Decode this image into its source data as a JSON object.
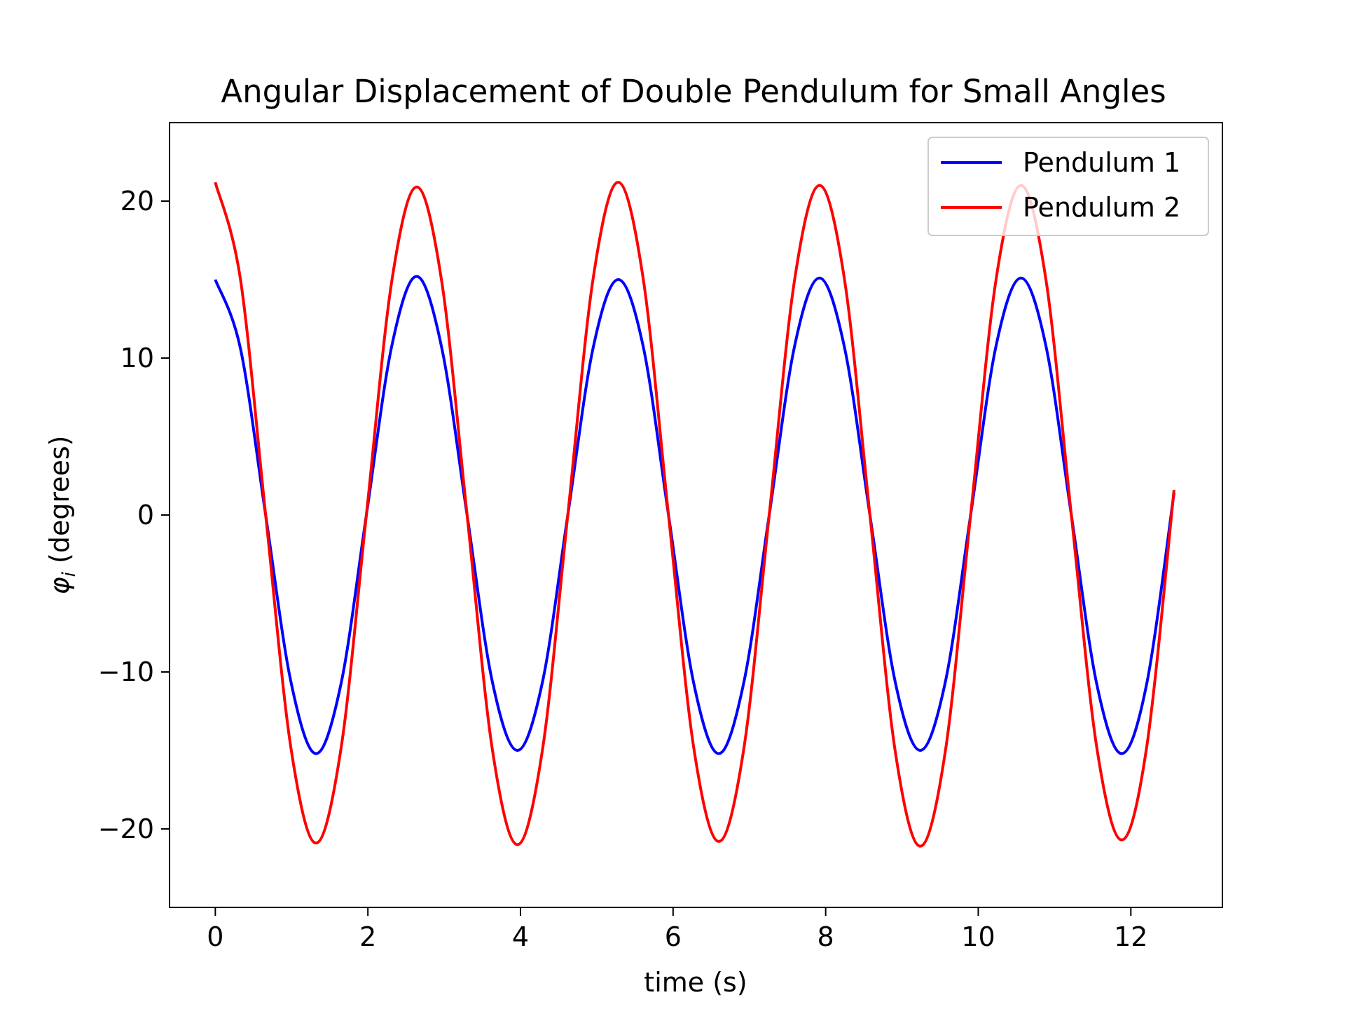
{
  "chart_data": {
    "type": "line",
    "title": "Angular Displacement of Double Pendulum for Small Angles",
    "xlabel": "time (s)",
    "ylabel_symbol": "φ",
    "ylabel_subscript": "i",
    "ylabel_rest": " (degrees)",
    "xlim": [
      -0.6,
      13.2
    ],
    "ylim": [
      -25,
      25
    ],
    "xticks": [
      0,
      2,
      4,
      6,
      8,
      10,
      12
    ],
    "yticks": [
      -20,
      -10,
      0,
      10,
      20
    ],
    "xtick_labels": [
      "0",
      "2",
      "4",
      "6",
      "8",
      "10",
      "12"
    ],
    "ytick_labels": [
      "−20",
      "−10",
      "0",
      "10",
      "20"
    ],
    "grid": false,
    "legend_position": "top-right",
    "t_range": [
      0,
      12.566
    ],
    "series": [
      {
        "name": "Pendulum 1",
        "color": "#0000ff",
        "x": [
          0,
          0.33,
          0.66,
          0.99,
          1.32,
          1.65,
          1.98,
          2.31,
          2.64,
          2.97,
          3.3,
          3.63,
          3.96,
          4.29,
          4.62,
          4.95,
          5.28,
          5.61,
          5.94,
          6.27,
          6.6,
          6.93,
          7.26,
          7.59,
          7.92,
          8.25,
          8.58,
          8.91,
          9.24,
          9.57,
          9.9,
          10.23,
          10.56,
          10.89,
          11.22,
          11.55,
          11.88,
          12.21,
          12.566
        ],
        "y": [
          15.0,
          10.6,
          0.0,
          -10.6,
          -15.2,
          -10.7,
          0.0,
          10.7,
          15.2,
          10.6,
          0.0,
          -10.6,
          -15.0,
          -10.6,
          0.0,
          10.6,
          15.0,
          10.7,
          0.0,
          -10.7,
          -15.2,
          -10.6,
          0.0,
          10.7,
          15.1,
          10.6,
          0.0,
          -10.6,
          -15.0,
          -10.6,
          0.0,
          10.7,
          15.1,
          10.7,
          0.0,
          -10.7,
          -15.2,
          -10.7,
          1.4
        ]
      },
      {
        "name": "Pendulum 2",
        "color": "#ff0000",
        "x": [
          0,
          0.33,
          0.66,
          0.99,
          1.32,
          1.65,
          1.98,
          2.31,
          2.64,
          2.97,
          3.3,
          3.63,
          3.96,
          4.29,
          4.62,
          4.95,
          5.28,
          5.61,
          5.94,
          6.27,
          6.6,
          6.93,
          7.26,
          7.59,
          7.92,
          8.25,
          8.58,
          8.91,
          9.24,
          9.57,
          9.9,
          10.23,
          10.56,
          10.89,
          11.22,
          11.55,
          11.88,
          12.21,
          12.566
        ],
        "y": [
          21.2,
          15.0,
          0.0,
          -14.8,
          -20.9,
          -14.8,
          0.0,
          14.8,
          20.9,
          14.8,
          0.0,
          -14.9,
          -21.0,
          -14.9,
          0.0,
          15.0,
          21.2,
          15.0,
          0.0,
          -14.8,
          -20.8,
          -14.8,
          0.0,
          14.9,
          21.0,
          14.9,
          0.0,
          -15.0,
          -21.1,
          -15.0,
          0.0,
          14.9,
          21.0,
          14.9,
          0.0,
          -14.7,
          -20.7,
          -14.7,
          1.6
        ]
      }
    ]
  }
}
